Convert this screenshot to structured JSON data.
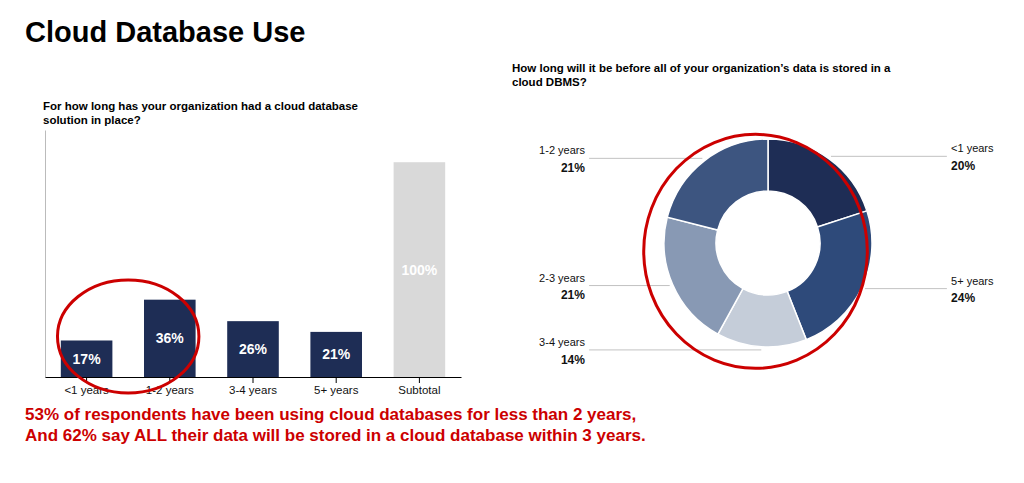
{
  "chart_data": [
    {
      "type": "bar",
      "title": "Cloud Database Use",
      "subtitle": "For how long has your organization had a cloud database\nsolution in place?",
      "categories": [
        "<1 years",
        "1-2 years",
        "3-4 years",
        "5+ years",
        "Subtotal"
      ],
      "values": [
        17,
        36,
        26,
        21,
        100
      ],
      "value_labels": [
        "17%",
        "36%",
        "26%",
        "21%",
        "100%"
      ],
      "colors": [
        "#1e2d55",
        "#1e2d55",
        "#1e2d55",
        "#1e2d55",
        "#d9d9d9"
      ],
      "data_labels": true,
      "ylim": [
        0,
        115
      ],
      "tick_labels": "x",
      "annotations": [
        "53% of respondents have been using cloud databases for less than 2 years,\nAnd 62% say ALL their data will be stored in a cloud database within 3 years."
      ]
    },
    {
      "type": "donut",
      "subtitle": "How long will it be before all of your organization’s data is stored in a\ncloud DBMS?",
      "categories": [
        "<1 years",
        "5+ years",
        "3-4 years",
        "2-3 years",
        "1-2 years"
      ],
      "values": [
        20,
        24,
        14,
        21,
        21
      ],
      "value_labels": [
        "20%",
        "24%",
        "14%",
        "21%",
        "21%"
      ],
      "colors": [
        "#1e2d55",
        "#2e4a7a",
        "#c5cdd9",
        "#8899b4",
        "#3d5580"
      ],
      "data_labels": true
    }
  ]
}
